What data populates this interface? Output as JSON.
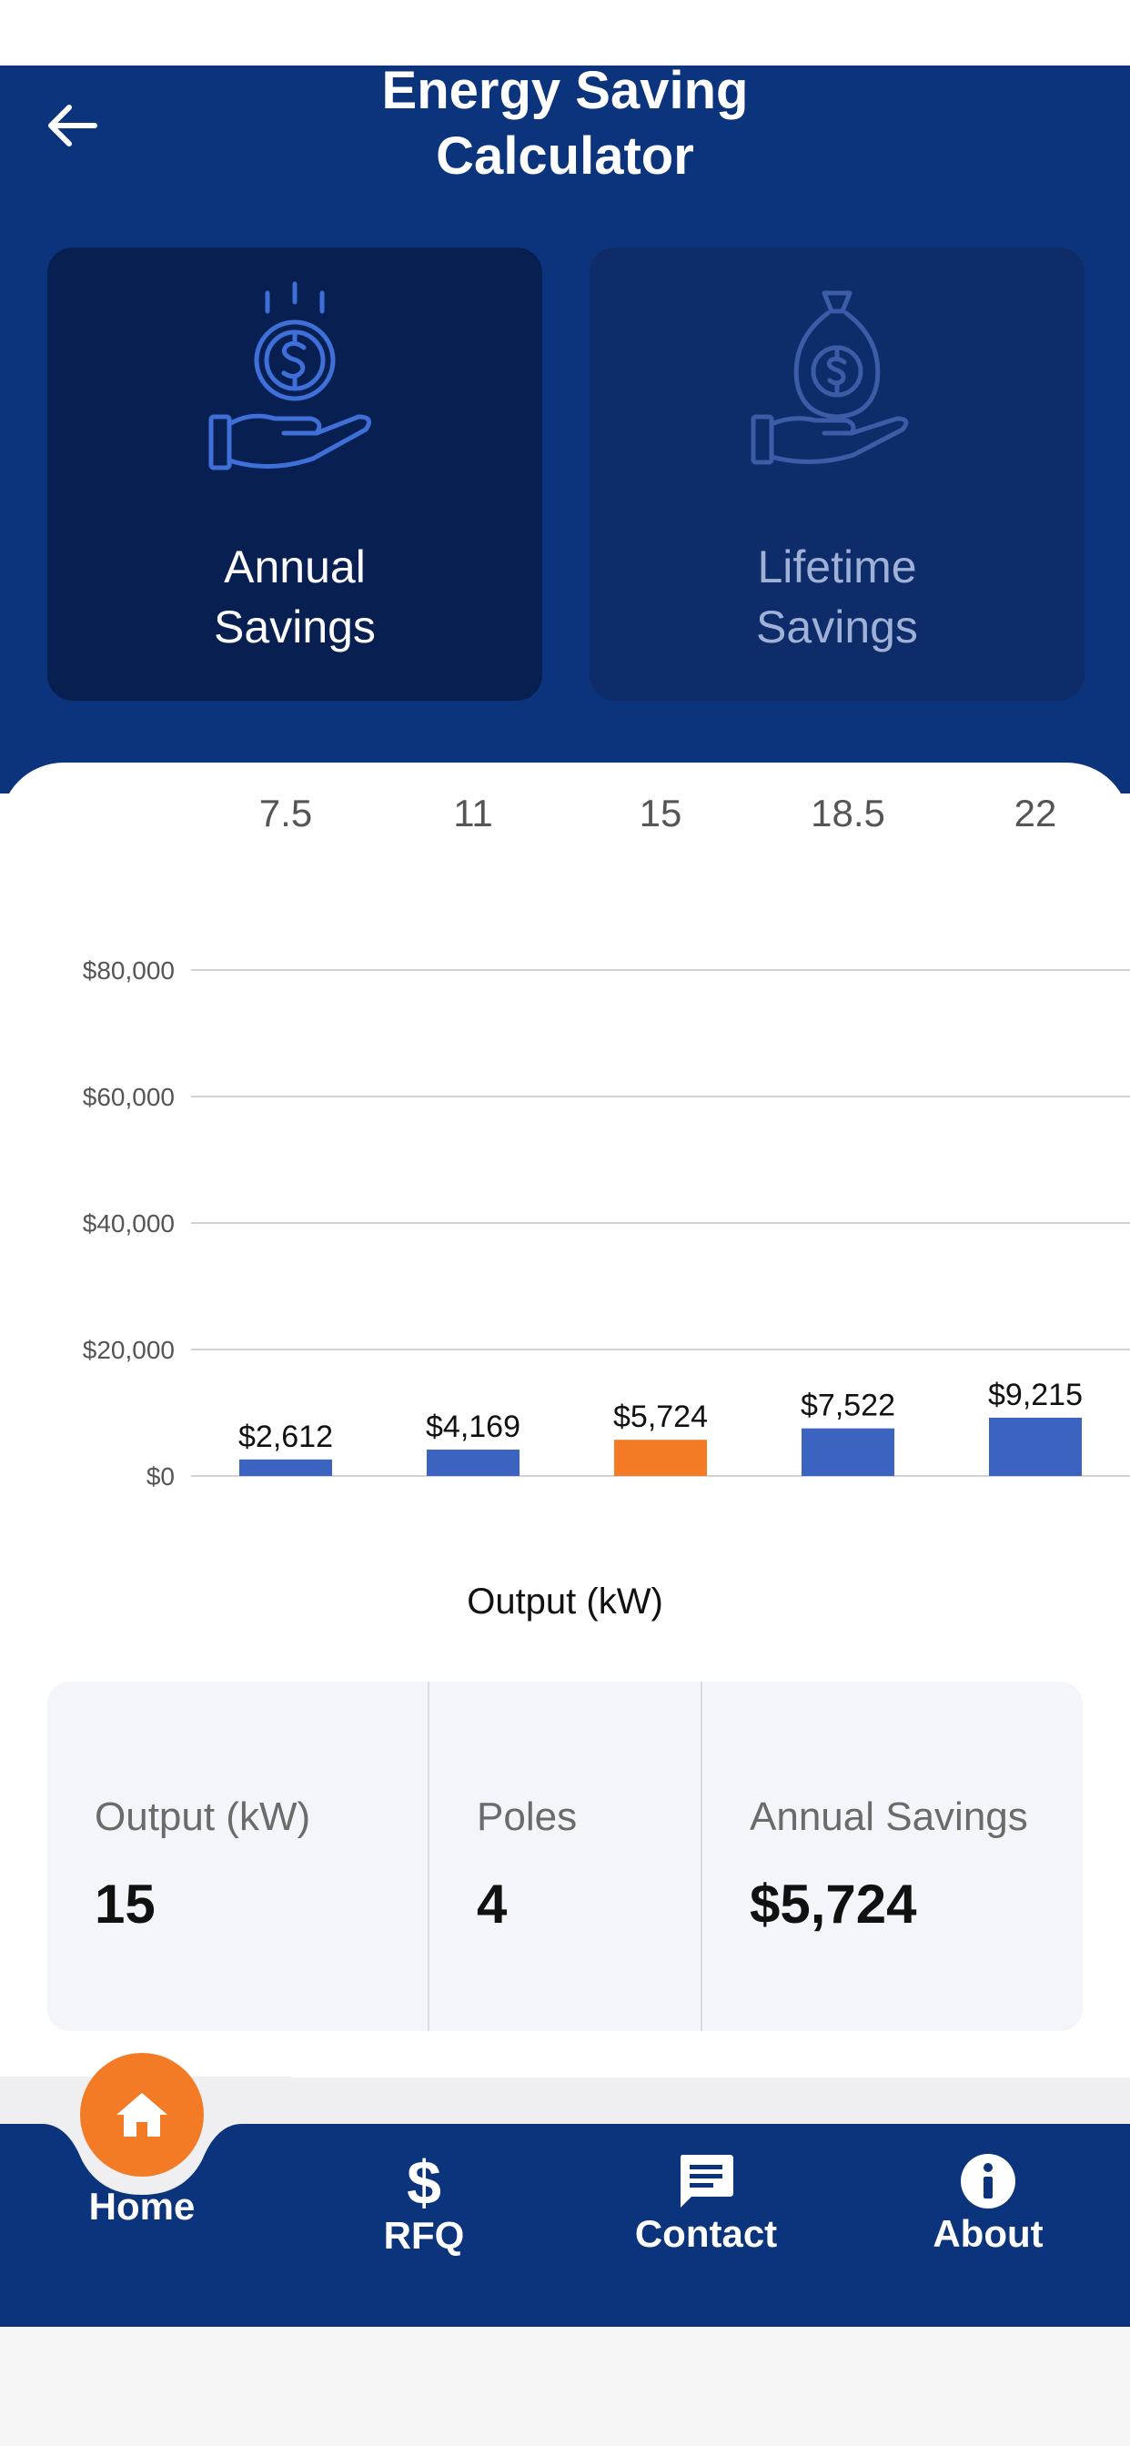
{
  "header": {
    "title_line1": "Energy Saving",
    "title_line2": "Calculator",
    "back_icon": "arrow-left-icon"
  },
  "tabs": [
    {
      "label_line1": "Annual",
      "label_line2": "Savings",
      "icon": "hand-coin-icon",
      "active": true
    },
    {
      "label_line1": "Lifetime",
      "label_line2": "Savings",
      "icon": "hand-money-bag-icon",
      "active": false
    }
  ],
  "chart_data": {
    "type": "bar",
    "categories": [
      "7.5",
      "11",
      "15",
      "18.5",
      "22"
    ],
    "values": [
      2612,
      4169,
      5724,
      7522,
      9215
    ],
    "data_labels": [
      "$2,612",
      "$4,169",
      "$5,724",
      "$7,522",
      "$9,215"
    ],
    "highlight_index": 2,
    "yticks": [
      0,
      20000,
      40000,
      60000,
      80000
    ],
    "ytick_labels": [
      "$0",
      "$20,000",
      "$40,000",
      "$60,000",
      "$80,000"
    ],
    "ylim": [
      0,
      80000
    ],
    "xlabel": "Output (kW)",
    "ylabel": "",
    "grid": true,
    "colors": {
      "bar": "#3a64c0",
      "highlight": "#f47b26",
      "grid": "#d2d2d6"
    }
  },
  "summary": {
    "output_label": "Output (kW)",
    "output_value": "15",
    "poles_label": "Poles",
    "poles_value": "4",
    "savings_label": "Annual Savings",
    "savings_value": "$5,724"
  },
  "nav": {
    "items": [
      {
        "label": "Home",
        "icon": "home-icon",
        "active": true
      },
      {
        "label": "RFQ",
        "icon": "dollar-icon",
        "active": false
      },
      {
        "label": "Contact",
        "icon": "message-icon",
        "active": false
      },
      {
        "label": "About",
        "icon": "info-icon",
        "active": false
      }
    ]
  },
  "colors": {
    "primary": "#0c347c",
    "accent": "#f47b26"
  }
}
